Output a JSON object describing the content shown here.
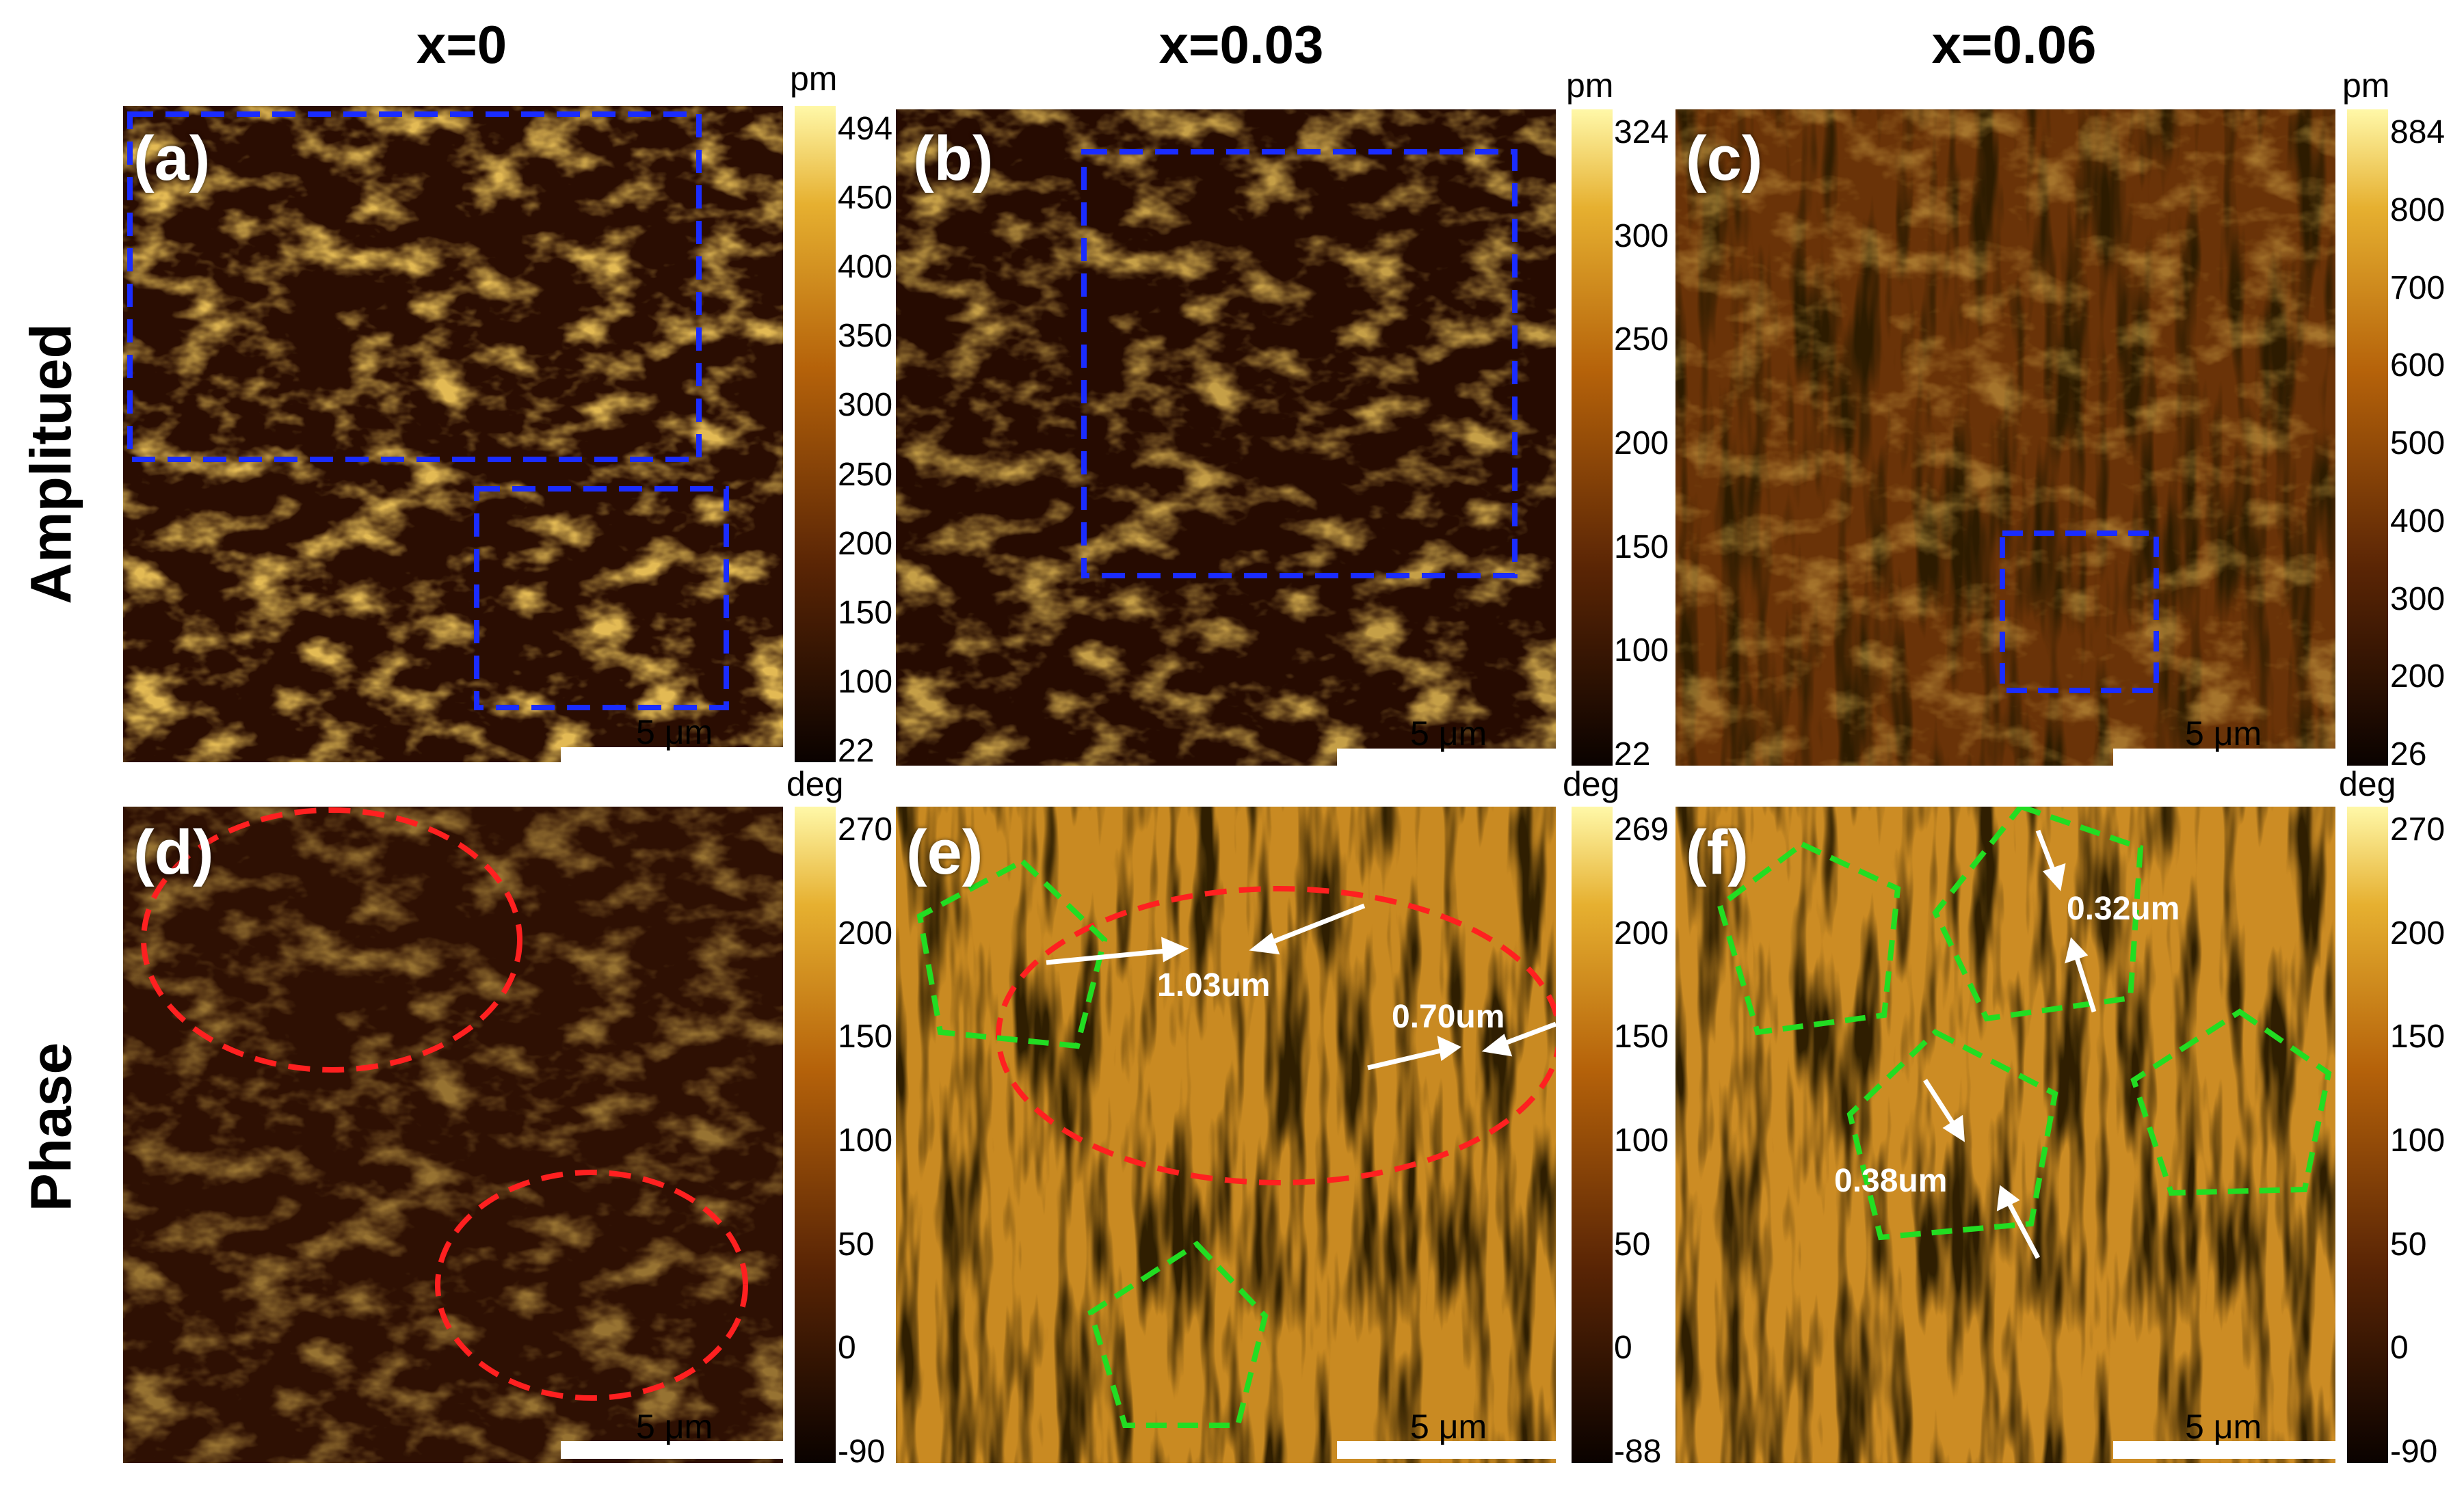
{
  "column_titles": [
    "x=0",
    "x=0.03",
    "x=0.06"
  ],
  "row_titles": [
    "Amplitued",
    "Phase"
  ],
  "panel_labels": [
    "(a)",
    "(b)",
    "(c)",
    "(d)",
    "(e)",
    "(f)"
  ],
  "scale_bar_label": "5 μm",
  "colorbars": {
    "a": {
      "unit": "pm",
      "ticks": [
        "494",
        "450",
        "400",
        "350",
        "300",
        "250",
        "200",
        "150",
        "100",
        "22"
      ]
    },
    "b": {
      "unit": "pm",
      "ticks": [
        "324",
        "300",
        "250",
        "200",
        "150",
        "100",
        "22"
      ]
    },
    "c": {
      "unit": "pm",
      "ticks": [
        "884",
        "800",
        "700",
        "600",
        "500",
        "400",
        "300",
        "200",
        "26"
      ]
    },
    "d": {
      "unit": "deg",
      "ticks": [
        "270",
        "200",
        "150",
        "100",
        "50",
        "0",
        "-90"
      ]
    },
    "e": {
      "unit": "deg",
      "ticks": [
        "269",
        "200",
        "150",
        "100",
        "50",
        "0",
        "-88"
      ]
    },
    "f": {
      "unit": "deg",
      "ticks": [
        "270",
        "200",
        "150",
        "100",
        "50",
        "0",
        "-90"
      ]
    }
  },
  "annotations": {
    "e1": "1.03um",
    "e2": "0.70um",
    "f1": "0.32um",
    "f2": "0.38um"
  },
  "colors": {
    "colormap_dark": "#1a0500",
    "colormap_mid": "#b5620a",
    "colormap_light": "#fff7a0",
    "blue_box": "#1a2cff",
    "red_ellipse": "#ff2020",
    "green_pentagon": "#22dd22"
  }
}
